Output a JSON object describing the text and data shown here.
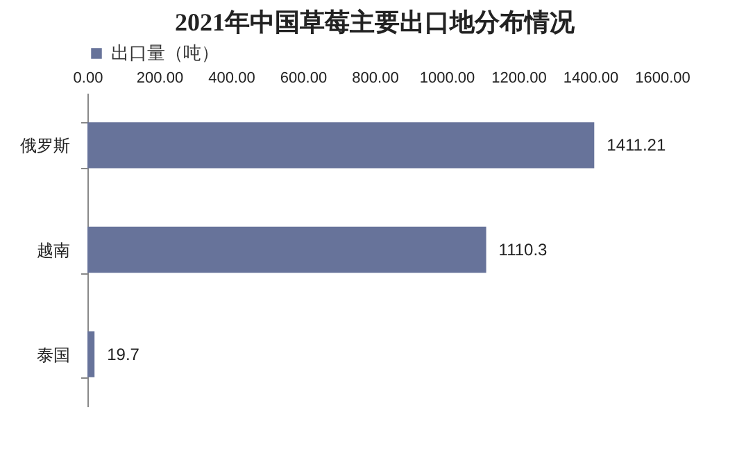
{
  "chart_data": {
    "type": "bar",
    "orientation": "horizontal",
    "title": "2021年中国草莓主要出口地分布情况",
    "categories": [
      "俄罗斯",
      "越南",
      "泰国"
    ],
    "series": [
      {
        "name": "出口量（吨）",
        "color": "#67739a",
        "values": [
          1411.21,
          1110.3,
          19.7
        ]
      }
    ],
    "xlim": [
      0,
      1600
    ],
    "xticks": [
      {
        "value": 0,
        "label": "0.00"
      },
      {
        "value": 200,
        "label": "200.00"
      },
      {
        "value": 400,
        "label": "400.00"
      },
      {
        "value": 600,
        "label": "600.00"
      },
      {
        "value": 800,
        "label": "800.00"
      },
      {
        "value": 1000,
        "label": "1000.00"
      },
      {
        "value": 1200,
        "label": "1200.00"
      },
      {
        "value": 1400,
        "label": "1400.00"
      },
      {
        "value": 1600,
        "label": "1600.00"
      }
    ],
    "data_labels": true,
    "legend": "top",
    "grid": false
  }
}
